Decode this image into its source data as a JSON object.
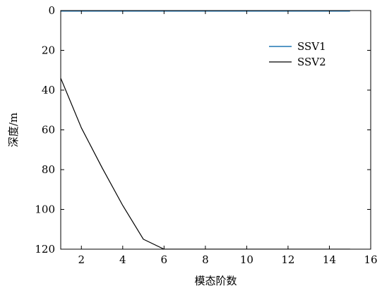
{
  "chart_data": {
    "type": "line",
    "xlabel": "模态阶数",
    "ylabel": "深度/m",
    "xlim": [
      1,
      16
    ],
    "ylim": [
      0,
      120
    ],
    "y_inverted": true,
    "x_ticks": [
      2,
      4,
      6,
      8,
      10,
      12,
      14,
      16
    ],
    "y_ticks": [
      0,
      20,
      40,
      60,
      80,
      100,
      120
    ],
    "grid": false,
    "legend_position": "top-right",
    "series": [
      {
        "name": "SSV1",
        "color": "#1f77b4",
        "x": [
          1,
          2,
          3,
          4,
          5,
          6,
          7,
          8,
          9,
          10,
          11,
          12,
          13,
          14,
          15
        ],
        "y": [
          0,
          0,
          0,
          0,
          0,
          0,
          0,
          0,
          0,
          0,
          0,
          0,
          0,
          0,
          0
        ]
      },
      {
        "name": "SSV2",
        "color": "#000000",
        "x": [
          1,
          2,
          3,
          4,
          5,
          6,
          7,
          8,
          9,
          10,
          11,
          12,
          13,
          14,
          15
        ],
        "y": [
          34,
          59,
          79,
          98,
          115,
          120,
          120,
          120,
          120,
          120,
          120,
          120,
          120,
          120,
          120
        ]
      }
    ]
  }
}
